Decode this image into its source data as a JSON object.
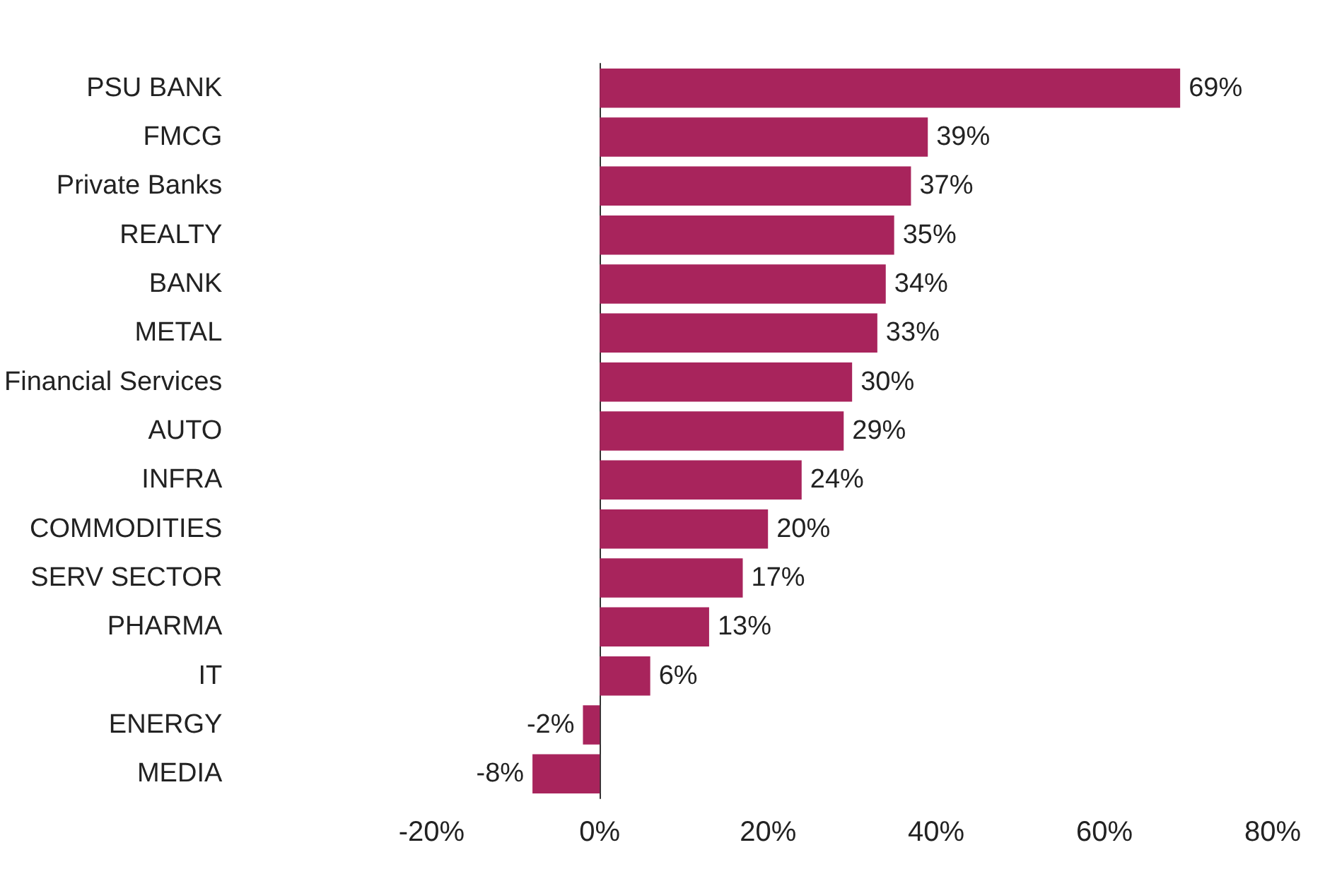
{
  "chart_data": {
    "type": "bar",
    "orientation": "horizontal",
    "categories": [
      "PSU BANK",
      "FMCG",
      "Private Banks",
      "REALTY",
      "BANK",
      "METAL",
      "Financial Services",
      "AUTO",
      "INFRA",
      "COMMODITIES",
      "SERV SECTOR",
      "PHARMA",
      "IT",
      "ENERGY",
      "MEDIA"
    ],
    "values": [
      69,
      39,
      37,
      35,
      34,
      33,
      30,
      29,
      24,
      20,
      17,
      13,
      6,
      -2,
      -8
    ],
    "value_labels": [
      "69%",
      "39%",
      "37%",
      "35%",
      "34%",
      "33%",
      "30%",
      "29%",
      "24%",
      "20%",
      "17%",
      "13%",
      "6%",
      "-2%",
      "-8%"
    ],
    "color": "#a8245c",
    "xlim": [
      -20,
      80
    ],
    "xticks": [
      {
        "value": -20,
        "label": "-20%"
      },
      {
        "value": 0,
        "label": "0%"
      },
      {
        "value": 20,
        "label": "20%"
      },
      {
        "value": 40,
        "label": "40%"
      },
      {
        "value": 60,
        "label": "60%"
      },
      {
        "value": 80,
        "label": "80%"
      }
    ]
  }
}
